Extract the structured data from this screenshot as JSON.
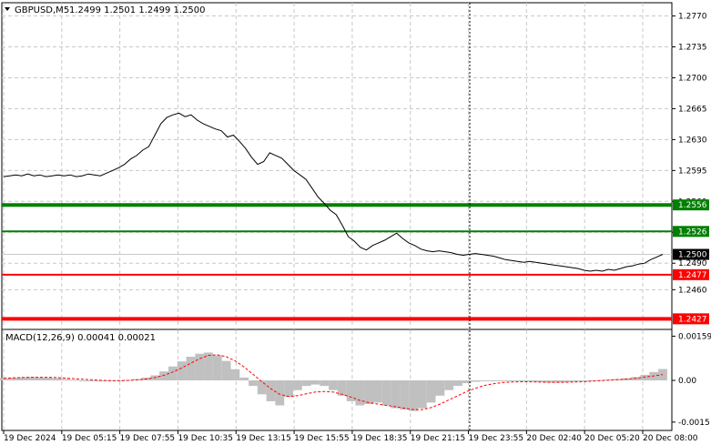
{
  "header": {
    "symbol": "GBPUSD,M5",
    "ohlc": "1.2499 1.2501 1.2499 1.2500",
    "dropdown_icon": "triangle-down-icon"
  },
  "macd": {
    "label": "MACD(12,26,9) 0.00041 0.00021"
  },
  "colors": {
    "price_line": "#000000",
    "green_level": "#008000",
    "red_level": "#ff0000",
    "grid": "#c8c8c8",
    "histogram": "#c0c0c0",
    "signal": "#ff0000",
    "current_price_tag": "#000000"
  },
  "chart_data": [
    {
      "type": "line",
      "title": "GBPUSD,M5",
      "series": [
        {
          "values": [
            1.2588,
            1.2589,
            1.259,
            1.2589,
            1.2591,
            1.2589,
            1.259,
            1.2588,
            1.2589,
            1.259,
            1.2589,
            1.259,
            1.2588,
            1.2589,
            1.2591,
            1.259,
            1.2589,
            1.2592,
            1.2595,
            1.2598,
            1.2602,
            1.2608,
            1.2612,
            1.2618,
            1.2622,
            1.2635,
            1.2648,
            1.2655,
            1.2658,
            1.266,
            1.2656,
            1.2658,
            1.2652,
            1.2648,
            1.2645,
            1.2642,
            1.264,
            1.2633,
            1.2635,
            1.2628,
            1.262,
            1.261,
            1.2602,
            1.2605,
            1.2615,
            1.2612,
            1.2609,
            1.2602,
            1.2595,
            1.259,
            1.2585,
            1.2575,
            1.2565,
            1.2558,
            1.255,
            1.2545,
            1.2533,
            1.252,
            1.2515,
            1.2508,
            1.2505,
            1.251,
            1.2513,
            1.2516,
            1.252,
            1.2524,
            1.2518,
            1.2513,
            1.251,
            1.2506,
            1.2504,
            1.2503,
            1.2504,
            1.2503,
            1.2502,
            1.25,
            1.2499,
            1.25,
            1.2501,
            1.25,
            1.2499,
            1.2498,
            1.2496,
            1.2494,
            1.2493,
            1.2492,
            1.2491,
            1.2492,
            1.2491,
            1.249,
            1.2489,
            1.2488,
            1.2487,
            1.2486,
            1.2485,
            1.2484,
            1.2482,
            1.2481,
            1.2482,
            1.2481,
            1.2483,
            1.2482,
            1.2484,
            1.2486,
            1.2487,
            1.2489,
            1.249,
            1.2494,
            1.2497,
            1.25
          ]
        }
      ],
      "x_tick_labels": [
        "19 Dec 2024",
        "19 Dec 05:15",
        "19 Dec 07:55",
        "19 Dec 10:35",
        "19 Dec 13:15",
        "19 Dec 15:55",
        "19 Dec 18:35",
        "19 Dec 21:15",
        "19 Dec 23:55",
        "20 Dec 02:40",
        "20 Dec 05:20",
        "20 Dec 08:00"
      ],
      "y_tick_labels": [
        "1.2770",
        "1.2735",
        "1.2700",
        "1.2665",
        "1.2630",
        "1.2595",
        "1.2560",
        "1.2525",
        "1.2490",
        "1.2460"
      ],
      "ylim": [
        1.2415,
        1.2785
      ],
      "levels": [
        {
          "value": 1.2556,
          "label": "1.2556",
          "color": "green",
          "style": "thick"
        },
        {
          "value": 1.2526,
          "label": "1.2526",
          "color": "green",
          "style": "thin"
        },
        {
          "value": 1.25,
          "label": "1.2500",
          "color": "black",
          "style": "current"
        },
        {
          "value": 1.2477,
          "label": "1.2477",
          "color": "red",
          "style": "thin"
        },
        {
          "value": 1.2427,
          "label": "1.2427",
          "color": "red",
          "style": "thick"
        }
      ],
      "grid": true
    },
    {
      "type": "bar",
      "title": "MACD(12,26,9) 0.00041 0.00021",
      "histogram": [
        8e-05,
        0.0001,
        0.00011,
        0.00012,
        0.00011,
        0.0001,
        8e-05,
        5e-05,
        2e-05,
        0.0,
        -1e-05,
        -2e-05,
        -1e-05,
        0.0,
        2e-05,
        5e-05,
        0.0001,
        0.00018,
        0.00032,
        0.0005,
        0.00068,
        0.00085,
        0.00096,
        0.001,
        0.0009,
        0.0007,
        0.0004,
        0.0001,
        -0.0002,
        -0.0005,
        -0.00075,
        -0.0009,
        -0.0006,
        -0.00035,
        -0.0002,
        -0.00015,
        -0.0002,
        -0.00035,
        -0.00055,
        -0.00075,
        -0.0009,
        -0.00085,
        -0.0008,
        -0.0009,
        -0.001,
        -0.00105,
        -0.0011,
        -0.001,
        -0.0008,
        -0.00055,
        -0.00035,
        -0.0002,
        -0.0001,
        -5e-05,
        0.0,
        -2e-05,
        -1e-05,
        0.0,
        -2e-05,
        -4e-05,
        -6e-05,
        -8e-05,
        -8e-05,
        -7e-05,
        -5e-05,
        -2e-05,
        0.0,
        1e-05,
        3e-05,
        5e-05,
        8e-05,
        0.00012,
        0.0002,
        0.0003,
        0.00041
      ],
      "signal": [
        8e-05,
        9e-05,
        0.0001,
        0.00011,
        0.00011,
        0.00011,
        0.0001,
        8e-05,
        6e-05,
        4e-05,
        2e-05,
        0.0,
        -1e-05,
        -1e-05,
        0.0,
        2e-05,
        5e-05,
        0.0001,
        0.00018,
        0.0003,
        0.00045,
        0.00062,
        0.00078,
        0.0009,
        0.00092,
        0.00085,
        0.0007,
        0.00048,
        0.00022,
        -5e-05,
        -0.0003,
        -0.0005,
        -0.00058,
        -0.00055,
        -0.00048,
        -0.00042,
        -0.0004,
        -0.00042,
        -0.0005,
        -0.0006,
        -0.00072,
        -0.0008,
        -0.00085,
        -0.0009,
        -0.00095,
        -0.001,
        -0.00105,
        -0.00105,
        -0.00098,
        -0.00085,
        -0.0007,
        -0.00055,
        -0.0004,
        -0.00028,
        -0.00018,
        -0.00012,
        -8e-05,
        -6e-05,
        -5e-05,
        -5e-05,
        -6e-05,
        -7e-05,
        -7e-05,
        -7e-05,
        -6e-05,
        -5e-05,
        -3e-05,
        -1e-05,
        1e-05,
        3e-05,
        5e-05,
        8e-05,
        0.00012,
        0.00016,
        0.00021
      ],
      "y_tick_labels": [
        "0.00159",
        "0.00",
        "-0.0015"
      ],
      "ylim": [
        -0.0018,
        0.0018
      ]
    }
  ]
}
